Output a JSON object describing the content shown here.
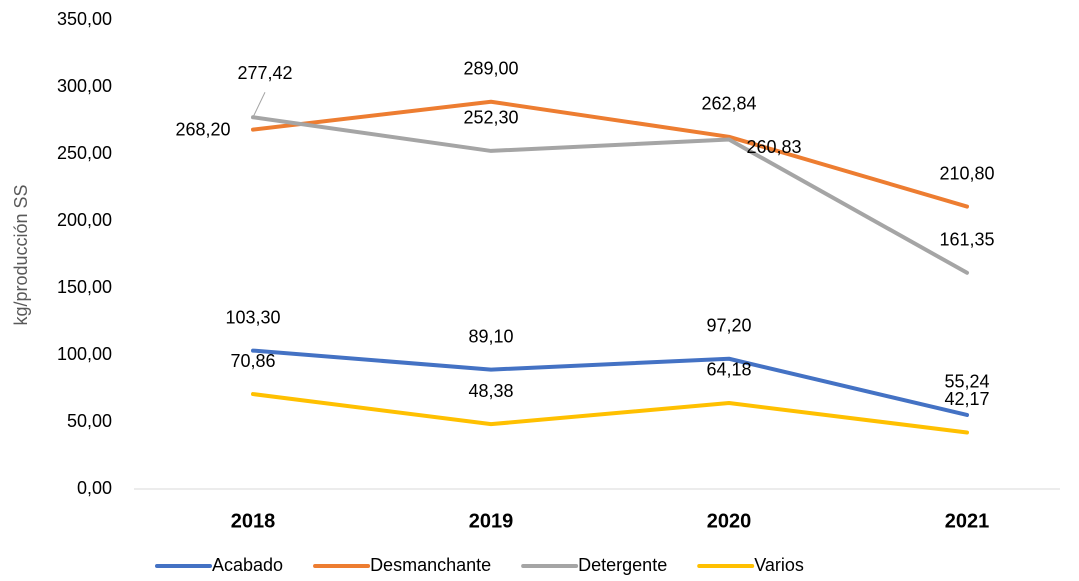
{
  "chart_data": {
    "type": "line",
    "y_label": "kg/producción SS",
    "categories": [
      "2018",
      "2019",
      "2020",
      "2021"
    ],
    "series": [
      {
        "name": "Acabado",
        "color": "#4472c4",
        "values": [
          103.3,
          89.1,
          97.2,
          55.24
        ],
        "value_labels": [
          "103,30",
          "89,10",
          "97,20",
          "55,24"
        ]
      },
      {
        "name": "Desmanchante",
        "color": "#ed7d31",
        "values": [
          268.2,
          289.0,
          262.84,
          210.8
        ],
        "value_labels": [
          "268,20",
          "289,00",
          "262,84",
          "210,80"
        ]
      },
      {
        "name": "Detergente",
        "color": "#a5a5a5",
        "values": [
          277.42,
          252.3,
          260.83,
          161.35
        ],
        "value_labels": [
          "277,42",
          "252,30",
          "260,83",
          "161,35"
        ]
      },
      {
        "name": "Varios",
        "color": "#ffc000",
        "values": [
          70.86,
          48.38,
          64.18,
          42.17
        ],
        "value_labels": [
          "70,86",
          "48,38",
          "64,18",
          "42,17"
        ]
      }
    ],
    "ylim": [
      0,
      350
    ],
    "yticks": [
      {
        "value": 0,
        "label": "0,00"
      },
      {
        "value": 50,
        "label": "50,00"
      },
      {
        "value": 100,
        "label": "100,00"
      },
      {
        "value": 150,
        "label": "150,00"
      },
      {
        "value": 200,
        "label": "200,00"
      },
      {
        "value": 250,
        "label": "250,00"
      },
      {
        "value": 300,
        "label": "300,00"
      },
      {
        "value": 350,
        "label": "350,00"
      }
    ],
    "grid": false,
    "legend": "bottom"
  }
}
